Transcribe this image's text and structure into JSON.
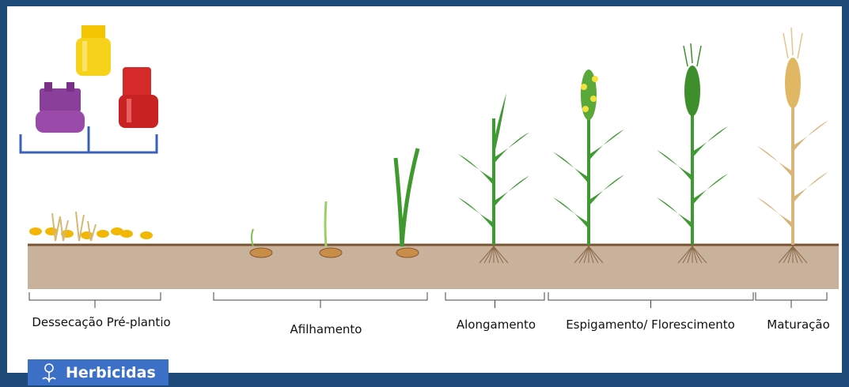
{
  "stages": [
    {
      "label": "Dessecação Pré-plantio"
    },
    {
      "label": "Afilhamento"
    },
    {
      "label": "Alongamento"
    },
    {
      "label": "Espigamento/ Florescimento"
    },
    {
      "label": "Maturação"
    }
  ],
  "badge": {
    "label": "Herbicidas"
  }
}
